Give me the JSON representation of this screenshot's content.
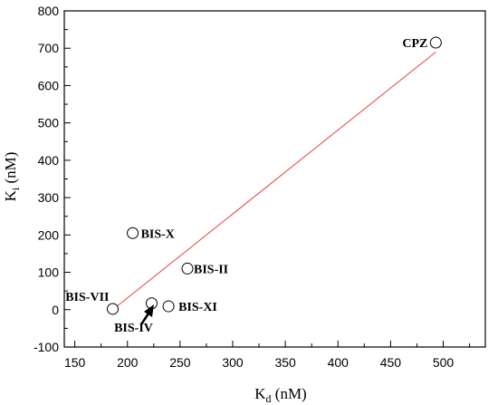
{
  "chart_data": {
    "type": "scatter",
    "xlabel_main": "K",
    "xlabel_sub": "d",
    "xlabel_unit": " (nM)",
    "ylabel_main": "K",
    "ylabel_sub": "i",
    "ylabel_unit": " (nM)",
    "xlim": [
      140,
      540
    ],
    "ylim": [
      -100,
      800
    ],
    "xticks": [
      150,
      200,
      250,
      300,
      350,
      400,
      450,
      500
    ],
    "yticks": [
      -100,
      0,
      100,
      200,
      300,
      400,
      500,
      600,
      700,
      800
    ],
    "points": [
      {
        "label": "CPZ",
        "x": 493,
        "y": 715
      },
      {
        "label": "BIS-X",
        "x": 205,
        "y": 205
      },
      {
        "label": "BIS-II",
        "x": 257,
        "y": 110
      },
      {
        "label": "BIS-VII",
        "x": 186,
        "y": 2
      },
      {
        "label": "BIS-IV",
        "x": 223,
        "y": 17
      },
      {
        "label": "BIS-XI",
        "x": 239,
        "y": 9
      }
    ],
    "fit_line": {
      "x": [
        186,
        493
      ],
      "y": [
        0,
        690
      ]
    },
    "line_color": "#e8413c",
    "marker_color": "#000000",
    "grid": false
  }
}
